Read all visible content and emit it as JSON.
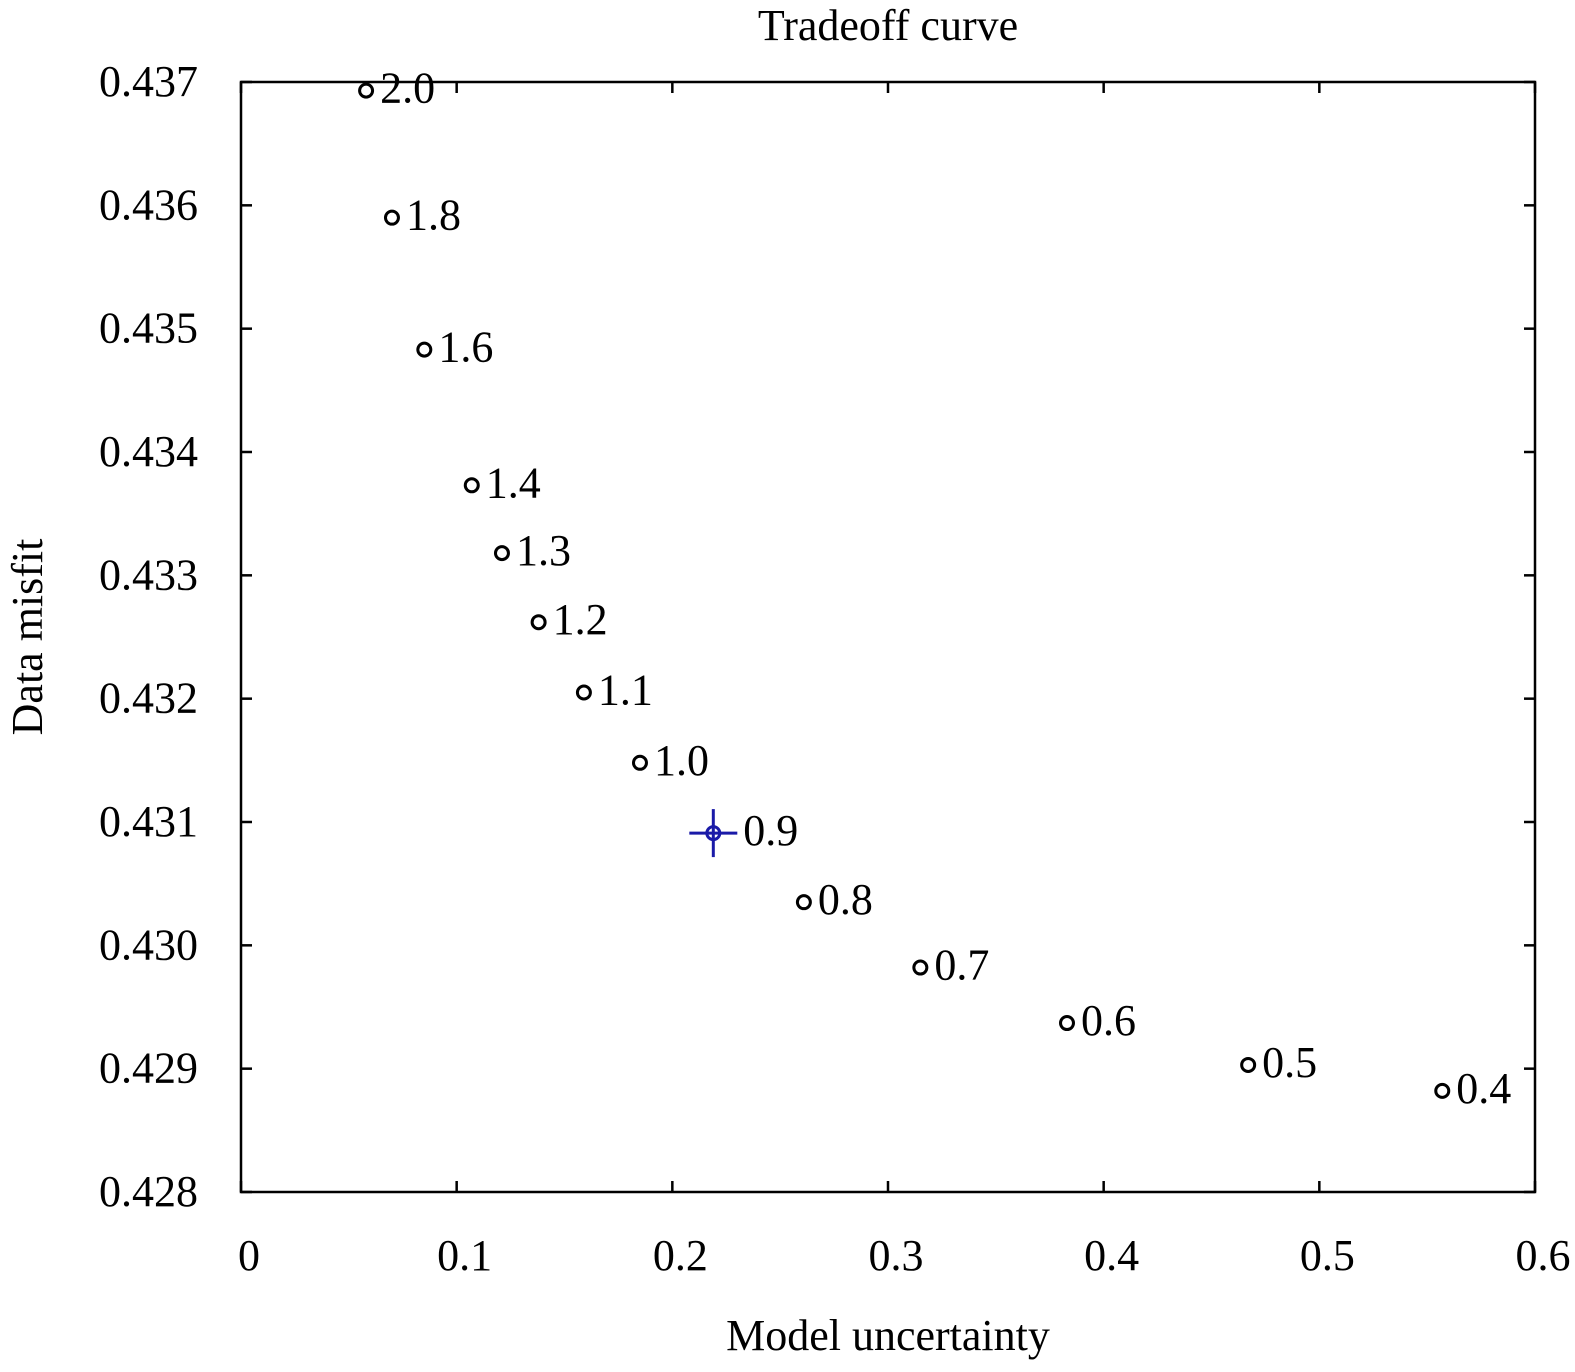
{
  "chart_data": {
    "type": "scatter",
    "title": "Tradeoff curve",
    "xlabel": "Model uncertainty",
    "ylabel": "Data misfit",
    "xlim": [
      0,
      0.6
    ],
    "ylim": [
      0.428,
      0.437
    ],
    "xticks": [
      0,
      0.1,
      0.2,
      0.3,
      0.4,
      0.5,
      0.6
    ],
    "xtick_labels": [
      "0",
      "0.1",
      "0.2",
      "0.3",
      "0.4",
      "0.5",
      "0.6"
    ],
    "yticks": [
      0.428,
      0.429,
      0.43,
      0.431,
      0.432,
      0.433,
      0.434,
      0.435,
      0.436,
      0.437
    ],
    "ytick_labels": [
      "0.428",
      "0.429",
      "0.430",
      "0.431",
      "0.432",
      "0.433",
      "0.434",
      "0.435",
      "0.436",
      "0.437"
    ],
    "grid": false,
    "points": [
      {
        "x": 0.058,
        "y": 0.43693,
        "label": "2.0"
      },
      {
        "x": 0.07,
        "y": 0.4359,
        "label": "1.8"
      },
      {
        "x": 0.085,
        "y": 0.43483,
        "label": "1.6"
      },
      {
        "x": 0.107,
        "y": 0.43373,
        "label": "1.4"
      },
      {
        "x": 0.121,
        "y": 0.43318,
        "label": "1.3"
      },
      {
        "x": 0.138,
        "y": 0.43262,
        "label": "1.2"
      },
      {
        "x": 0.159,
        "y": 0.43205,
        "label": "1.1"
      },
      {
        "x": 0.185,
        "y": 0.43148,
        "label": "1.0"
      },
      {
        "x": 0.261,
        "y": 0.43035,
        "label": "0.8"
      },
      {
        "x": 0.315,
        "y": 0.42982,
        "label": "0.7"
      },
      {
        "x": 0.383,
        "y": 0.42937,
        "label": "0.6"
      },
      {
        "x": 0.467,
        "y": 0.42903,
        "label": "0.5"
      },
      {
        "x": 0.557,
        "y": 0.42882,
        "label": "0.4"
      }
    ],
    "selected_point": {
      "x": 0.219,
      "y": 0.43091,
      "label": "0.9",
      "color": "#1a1aa8"
    },
    "colors": {
      "points": "#000000",
      "selected": "#1a1aa8"
    }
  }
}
